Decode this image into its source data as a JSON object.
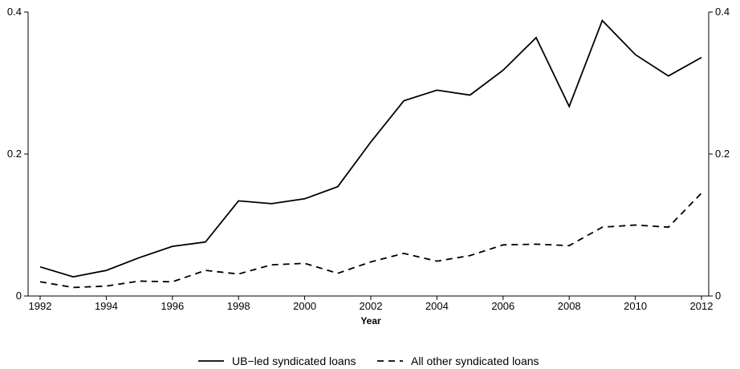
{
  "chart_data": {
    "type": "line",
    "title": "",
    "xlabel": "Year",
    "ylabel": "",
    "x": [
      1992,
      1993,
      1994,
      1995,
      1996,
      1997,
      1998,
      1999,
      2000,
      2001,
      2002,
      2003,
      2004,
      2005,
      2006,
      2007,
      2008,
      2009,
      2010,
      2011,
      2012
    ],
    "series": [
      {
        "name": "UB−led syndicated loans",
        "style": "solid",
        "color": "#000000",
        "values": [
          0.041,
          0.027,
          0.036,
          0.054,
          0.07,
          0.076,
          0.134,
          0.13,
          0.137,
          0.154,
          0.217,
          0.275,
          0.29,
          0.283,
          0.318,
          0.364,
          0.267,
          0.388,
          0.34,
          0.31,
          0.336
        ]
      },
      {
        "name": "All other syndicated loans",
        "style": "dashed",
        "color": "#000000",
        "values": [
          0.02,
          0.012,
          0.014,
          0.021,
          0.02,
          0.036,
          0.031,
          0.044,
          0.046,
          0.032,
          0.048,
          0.06,
          0.049,
          0.057,
          0.072,
          0.073,
          0.071,
          0.097,
          0.1,
          0.097,
          0.145
        ]
      }
    ],
    "xlim": [
      1992,
      2012
    ],
    "ylim": [
      0,
      0.4
    ],
    "x_ticks": [
      "1992",
      "1994",
      "1996",
      "1998",
      "2000",
      "2002",
      "2004",
      "2006",
      "2008",
      "2010",
      "2012"
    ],
    "y_ticks_left": [
      "0",
      "0.2",
      "0.4"
    ],
    "y_ticks_right": [
      "0",
      "0.2",
      "0.4"
    ],
    "grid": false,
    "legend_position": "bottom-center"
  }
}
